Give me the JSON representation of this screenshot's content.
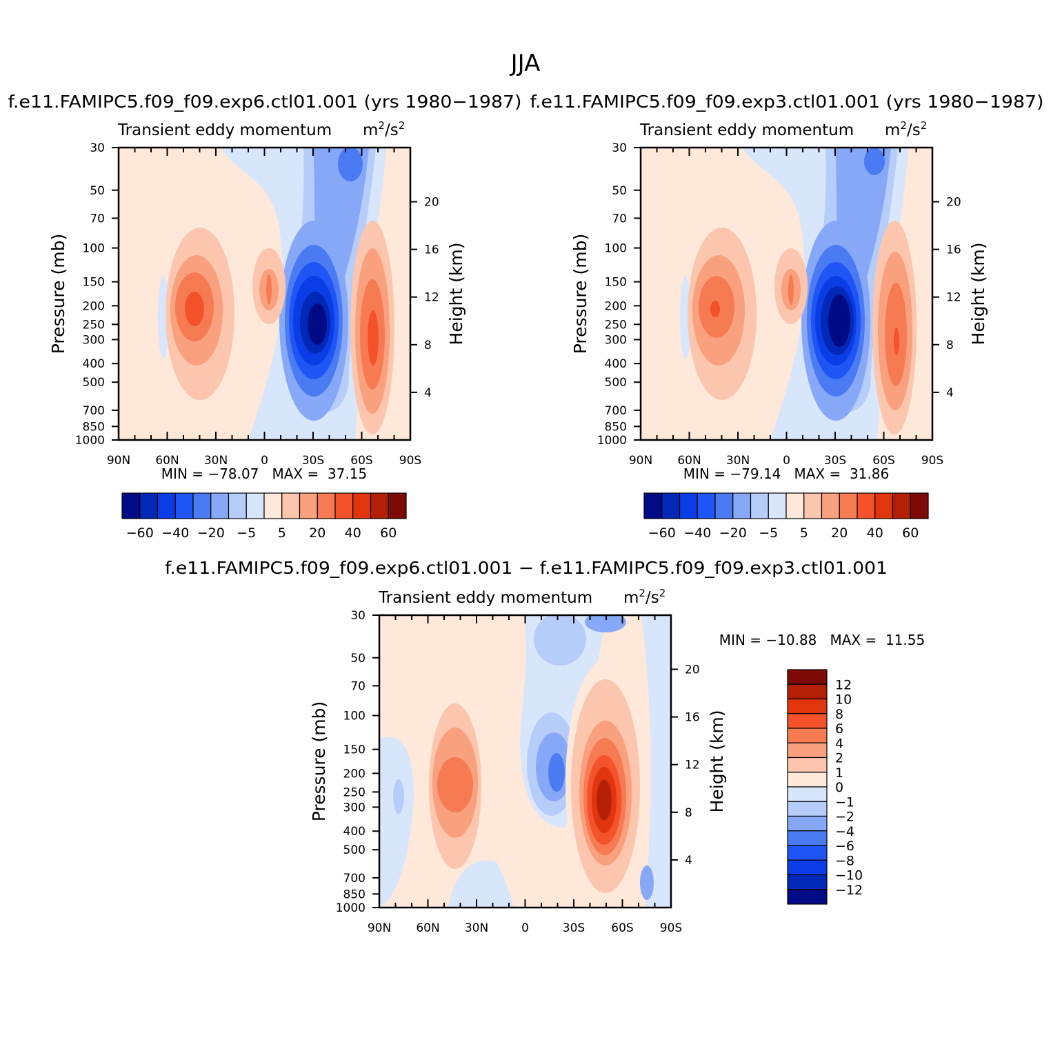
{
  "figure_title": "JJA",
  "colors": {
    "main_scale": [
      "#000b85",
      "#0029b8",
      "#0a3de6",
      "#1f55f5",
      "#4a7bf2",
      "#86a8f7",
      "#b6ccf9",
      "#d8e6fb",
      "#fde8da",
      "#fbc6ad",
      "#f9a17f",
      "#f77b52",
      "#f4522b",
      "#e1350e",
      "#b32006",
      "#7d0a04"
    ],
    "diff_scale": [
      "#7d0a04",
      "#b32006",
      "#e1350e",
      "#f4522b",
      "#f77b52",
      "#f9a17f",
      "#fbc6ad",
      "#fde8da",
      "#d8e6fb",
      "#b6ccf9",
      "#86a8f7",
      "#4a7bf2",
      "#1f55f5",
      "#0a3de6",
      "#0029b8",
      "#000b85"
    ]
  },
  "chart_data": [
    {
      "type": "heatmap",
      "panel": "top-left",
      "title": "f.e11.FAMIPC5.f09_f09.exp6.ctl01.001 (yrs 1980−1987)",
      "subtitle": "Transient eddy momentum",
      "units": "m²/s²",
      "units_base": "m",
      "units_sup": "2",
      "units_sep": "/s",
      "units_sup2": "2",
      "xlabel": "",
      "ylabel": "Pressure (mb)",
      "y2label": "Height (km)",
      "x_ticks": [
        "90N",
        "60N",
        "30N",
        "0",
        "30S",
        "60S",
        "90S"
      ],
      "x_range": [
        90,
        -90
      ],
      "y_ticks": [
        "30",
        "50",
        "70",
        "100",
        "150",
        "200",
        "250",
        "300",
        "400",
        "500",
        "700",
        "850",
        "1000"
      ],
      "y_range": [
        1000,
        30
      ],
      "y_scale": "log",
      "y2_ticks": [
        "4",
        "8",
        "12",
        "16",
        "20"
      ],
      "stats_text": "MIN = −78.07   MAX =  37.15",
      "min": -78.07,
      "max": 37.15,
      "levels": [
        -60,
        -50,
        -40,
        -30,
        -20,
        -10,
        -5,
        0,
        5,
        10,
        20,
        30,
        40,
        50,
        60
      ],
      "colorbar_labels": [
        "−60",
        "−40",
        "−20",
        "−5",
        "5",
        "20",
        "40",
        "60"
      ],
      "features": [
        {
          "lat": 45,
          "p": 220,
          "value": 30
        },
        {
          "lat": 10,
          "p": 170,
          "value": 20
        },
        {
          "lat": -32,
          "p": 260,
          "value": -78
        },
        {
          "lat": -68,
          "p": 300,
          "value": 37
        },
        {
          "lat": -38,
          "p": 35,
          "value": -20
        }
      ]
    },
    {
      "type": "heatmap",
      "panel": "top-right",
      "title": "f.e11.FAMIPC5.f09_f09.exp3.ctl01.001 (yrs 1980−1987)",
      "subtitle": "Transient eddy momentum",
      "units": "m²/s²",
      "units_base": "m",
      "units_sup": "2",
      "units_sep": "/s",
      "units_sup2": "2",
      "xlabel": "",
      "ylabel": "Pressure (mb)",
      "y2label": "Height (km)",
      "x_ticks": [
        "90N",
        "60N",
        "30N",
        "0",
        "30S",
        "60S",
        "90S"
      ],
      "x_range": [
        90,
        -90
      ],
      "y_ticks": [
        "30",
        "50",
        "70",
        "100",
        "150",
        "200",
        "250",
        "300",
        "400",
        "500",
        "700",
        "850",
        "1000"
      ],
      "y_range": [
        1000,
        30
      ],
      "y_scale": "log",
      "y2_ticks": [
        "4",
        "8",
        "12",
        "16",
        "20"
      ],
      "stats_text": "MIN = −79.14   MAX =  31.86",
      "min": -79.14,
      "max": 31.86,
      "levels": [
        -60,
        -50,
        -40,
        -30,
        -20,
        -10,
        -5,
        0,
        5,
        10,
        20,
        30,
        40,
        50,
        60
      ],
      "colorbar_labels": [
        "−60",
        "−40",
        "−20",
        "−5",
        "5",
        "20",
        "40",
        "60"
      ],
      "features": [
        {
          "lat": 45,
          "p": 210,
          "value": 31
        },
        {
          "lat": 10,
          "p": 170,
          "value": 20
        },
        {
          "lat": -32,
          "p": 250,
          "value": -79
        },
        {
          "lat": -68,
          "p": 310,
          "value": 30
        },
        {
          "lat": -38,
          "p": 35,
          "value": -20
        }
      ]
    },
    {
      "type": "heatmap",
      "panel": "bottom",
      "title": "f.e11.FAMIPC5.f09_f09.exp6.ctl01.001 − f.e11.FAMIPC5.f09_f09.exp3.ctl01.001",
      "subtitle": "Transient eddy momentum",
      "units": "m²/s²",
      "units_base": "m",
      "units_sup": "2",
      "units_sep": "/s",
      "units_sup2": "2",
      "xlabel": "",
      "ylabel": "Pressure (mb)",
      "y2label": "Height (km)",
      "x_ticks": [
        "90N",
        "60N",
        "30N",
        "0",
        "30S",
        "60S",
        "90S"
      ],
      "x_range": [
        90,
        -90
      ],
      "y_ticks": [
        "30",
        "50",
        "70",
        "100",
        "150",
        "200",
        "250",
        "300",
        "400",
        "500",
        "700",
        "850",
        "1000"
      ],
      "y_range": [
        1000,
        30
      ],
      "y_scale": "log",
      "y2_ticks": [
        "4",
        "8",
        "12",
        "16",
        "20"
      ],
      "stats_text": "MIN = −10.88   MAX =  11.55",
      "min": -10.88,
      "max": 11.55,
      "levels": [
        12,
        10,
        8,
        6,
        4,
        2,
        1,
        0,
        -1,
        -2,
        -4,
        -6,
        -8,
        -10,
        -12
      ],
      "colorbar_labels": [
        "12",
        "10",
        "8",
        "6",
        "4",
        "2",
        "1",
        "0",
        "−1",
        "−2",
        "−4",
        "−6",
        "−8",
        "−10",
        "−12"
      ],
      "features": [
        {
          "lat": 48,
          "p": 220,
          "value": 5
        },
        {
          "lat": -20,
          "p": 200,
          "value": -4
        },
        {
          "lat": -48,
          "p": 270,
          "value": 11.5
        },
        {
          "lat": -45,
          "p": 40,
          "value": -2
        }
      ]
    }
  ]
}
